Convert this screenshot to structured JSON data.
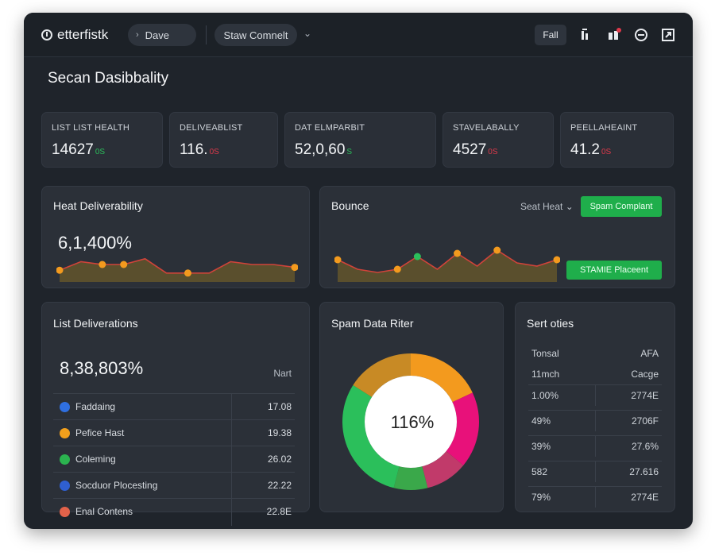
{
  "app": {
    "brand": "etterfistk",
    "search_label": "Dave",
    "status_label": "Staw Comnelt",
    "fall_button": "Fall",
    "page_title": "Secan Dasibbality"
  },
  "stats": [
    {
      "label": "LIST LIST HEALTH",
      "value": "14627",
      "delta": "0S",
      "trend": "up"
    },
    {
      "label": "DELIVEABLIST",
      "value": "116.",
      "delta": "0S",
      "trend": "down"
    },
    {
      "label": "DAT ELMPARBIT",
      "value": "52,0,60",
      "delta": "S",
      "trend": "up"
    },
    {
      "label": "STAVELABALLY",
      "value": "4527",
      "delta": "0S",
      "trend": "down"
    },
    {
      "label": "PEELLAHEAINT",
      "value": "41.2",
      "delta": "0S",
      "trend": "down"
    }
  ],
  "heat": {
    "title": "Heat Deliverability",
    "value": "6,1,400%"
  },
  "bounce": {
    "title": "Bounce",
    "select_label": "Seat Heat",
    "button_top": "Spam Complant",
    "button_bottom": "STAMIE Placeent"
  },
  "list": {
    "title": "List Deliverations",
    "value": "8,38,803%",
    "column_label": "Nart",
    "rows": [
      {
        "name": "Faddaing",
        "value": "17.08",
        "color": "#2f6fe0"
      },
      {
        "name": "Pefice Hast",
        "value": "19.38",
        "color": "#f2a01c"
      },
      {
        "name": "Coleming",
        "value": "26.02",
        "color": "#2bb34f"
      },
      {
        "name": "Socduor Plocesting",
        "value": "22.22",
        "color": "#2f5fd0"
      },
      {
        "name": "Enal Contens",
        "value": "22.8E",
        "color": "#e2624a"
      }
    ]
  },
  "spam": {
    "title": "Spam Data Riter",
    "center_value": "116%"
  },
  "sort": {
    "title": "Sert oties",
    "header_left": "Tonsal",
    "header_right": "AFA",
    "sub_left": "11mch",
    "sub_right": "Cacge",
    "rows": [
      {
        "left": "1.00%",
        "right": "2774E"
      },
      {
        "left": "49%",
        "right": "2706F"
      },
      {
        "left": "39%",
        "right": "27.6%"
      },
      {
        "left": "582",
        "right": "27.616"
      },
      {
        "left": "79%",
        "right": "2774E"
      }
    ]
  },
  "colors": {
    "accent_green": "#1fae4b",
    "line_orange": "#f39a1e",
    "line_red": "#d0433a",
    "donut": [
      "#f39a1e",
      "#e8117a",
      "#c13a6a",
      "#3aa84a",
      "#2bbf5b",
      "#c88a25"
    ]
  },
  "icons": [
    "search-chevron",
    "info-icon",
    "notifications-icon",
    "chat-icon",
    "export-icon"
  ],
  "chart_data": [
    {
      "type": "area",
      "title": "Heat Deliverability",
      "x": [
        1,
        2,
        3,
        4,
        5,
        6,
        7,
        8,
        9,
        10,
        11,
        12
      ],
      "series": [
        {
          "values": [
            3,
            6,
            5,
            5,
            7,
            2,
            2,
            2,
            6,
            5,
            5,
            4
          ]
        }
      ]
    },
    {
      "type": "area",
      "title": "Bounce",
      "x": [
        1,
        2,
        3,
        4,
        5,
        6,
        7,
        8,
        9,
        10,
        11,
        12
      ],
      "series": [
        {
          "values": [
            6,
            3,
            2,
            3,
            7,
            3,
            8,
            4,
            9,
            5,
            4,
            6
          ]
        }
      ]
    },
    {
      "type": "pie",
      "title": "Spam Data Riter",
      "values": [
        18,
        18,
        10,
        8,
        30,
        16
      ]
    }
  ]
}
